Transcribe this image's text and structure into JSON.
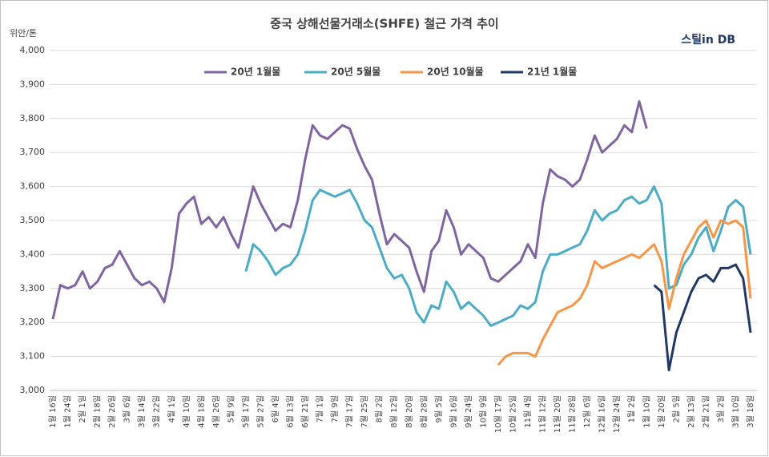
{
  "chart_data": {
    "type": "line",
    "title": "중국 상해선물거래소(SHFE) 철근 가격 추이",
    "y_label": "위안/톤",
    "source": "스틸in DB",
    "legend_position": "top",
    "grid": true,
    "ylim": [
      3000,
      4000
    ],
    "yticks": [
      {
        "value": 3000,
        "label": "3,000"
      },
      {
        "value": 3100,
        "label": "3,100"
      },
      {
        "value": 3200,
        "label": "3,200"
      },
      {
        "value": 3300,
        "label": "3,300"
      },
      {
        "value": 3400,
        "label": "3,400"
      },
      {
        "value": 3500,
        "label": "3,500"
      },
      {
        "value": 3600,
        "label": "3,600"
      },
      {
        "value": 3700,
        "label": "3,700"
      },
      {
        "value": 3800,
        "label": "3,800"
      },
      {
        "value": 3900,
        "label": "3,900"
      },
      {
        "value": 4000,
        "label": "4,000"
      }
    ],
    "categories": [
      "1월 16일",
      null,
      "1월 24일",
      null,
      "2월 1일",
      null,
      "2월 18일",
      null,
      "2월 26일",
      null,
      "3월 6일",
      null,
      "3월 14일",
      null,
      "3월 22일",
      null,
      "4월 1일",
      null,
      "4월 10일",
      null,
      "4월 18일",
      null,
      "4월 26일",
      null,
      "5월 9일",
      null,
      "5월 17일",
      null,
      "5월 27일",
      null,
      "6월 4일",
      null,
      "6월 13일",
      null,
      "6월 21일",
      null,
      "7월 1일",
      null,
      "7월 9일",
      null,
      "7월 17일",
      null,
      "7월 25일",
      null,
      "8월 2일",
      null,
      "8월 12일",
      null,
      "8월 20일",
      null,
      "8월 28일",
      null,
      "9월 5일",
      null,
      "9월 16일",
      null,
      "9월 24일",
      null,
      "10월 9일",
      null,
      "10월 17일",
      null,
      "10월 25일",
      null,
      "11월 4일",
      null,
      "11월 12일",
      null,
      "11월 20일",
      null,
      "11월 28일",
      null,
      "12월 6일",
      null,
      "12월 16일",
      null,
      "12월 24일",
      null,
      "1월 2일",
      null,
      "1월 10일",
      null,
      "1월 20일",
      null,
      "2월 5일",
      null,
      "2월 13일",
      null,
      "2월 21일",
      null,
      "3월 2일",
      null,
      "3월 10일",
      null,
      "3월 18일"
    ],
    "series": [
      {
        "name": "20년 1월물",
        "color": "#8064a2",
        "values": [
          3210,
          3310,
          3300,
          3310,
          3350,
          3300,
          3320,
          3360,
          3370,
          3410,
          3370,
          3330,
          3310,
          3320,
          3300,
          3260,
          3360,
          3520,
          3550,
          3570,
          3490,
          3510,
          3480,
          3510,
          3460,
          3420,
          3510,
          3600,
          3550,
          3510,
          3470,
          3490,
          3480,
          3560,
          3680,
          3780,
          3750,
          3740,
          3760,
          3780,
          3770,
          3710,
          3660,
          3620,
          3520,
          3430,
          3460,
          3440,
          3420,
          3350,
          3290,
          3410,
          3440,
          3530,
          3480,
          3400,
          3430,
          3410,
          3390,
          3330,
          3320,
          3340,
          3360,
          3380,
          3430,
          3390,
          3550,
          3650,
          3630,
          3620,
          3600,
          3620,
          3680,
          3750,
          3700,
          3720,
          3740,
          3780,
          3760,
          3850,
          3770,
          null,
          null,
          null,
          null,
          null,
          null,
          null,
          null,
          null,
          null,
          null,
          null,
          null,
          null
        ]
      },
      {
        "name": "20년 5월물",
        "color": "#4bacc6",
        "values": [
          null,
          null,
          null,
          null,
          null,
          null,
          null,
          null,
          null,
          null,
          null,
          null,
          null,
          null,
          null,
          null,
          null,
          null,
          null,
          null,
          null,
          null,
          null,
          null,
          null,
          null,
          3350,
          3430,
          3410,
          3380,
          3340,
          3360,
          3370,
          3400,
          3470,
          3560,
          3590,
          3580,
          3570,
          3580,
          3590,
          3550,
          3500,
          3480,
          3420,
          3360,
          3330,
          3340,
          3300,
          3230,
          3200,
          3250,
          3240,
          3320,
          3290,
          3240,
          3260,
          3240,
          3220,
          3190,
          3200,
          3210,
          3220,
          3250,
          3240,
          3260,
          3350,
          3400,
          3400,
          3410,
          3420,
          3430,
          3470,
          3530,
          3500,
          3520,
          3530,
          3560,
          3570,
          3550,
          3560,
          3600,
          3550,
          3300,
          3310,
          3370,
          3400,
          3450,
          3480,
          3410,
          3470,
          3540,
          3560,
          3540,
          3400
        ]
      },
      {
        "name": "20년 10월물",
        "color": "#f79646",
        "values": [
          null,
          null,
          null,
          null,
          null,
          null,
          null,
          null,
          null,
          null,
          null,
          null,
          null,
          null,
          null,
          null,
          null,
          null,
          null,
          null,
          null,
          null,
          null,
          null,
          null,
          null,
          null,
          null,
          null,
          null,
          null,
          null,
          null,
          null,
          null,
          null,
          null,
          null,
          null,
          null,
          null,
          null,
          null,
          null,
          null,
          null,
          null,
          null,
          null,
          null,
          null,
          null,
          null,
          null,
          null,
          null,
          null,
          null,
          null,
          null,
          3075,
          3100,
          3110,
          3110,
          3110,
          3100,
          3150,
          3190,
          3230,
          3240,
          3250,
          3270,
          3310,
          3380,
          3360,
          3370,
          3380,
          3390,
          3400,
          3390,
          3410,
          3430,
          3380,
          3240,
          3330,
          3400,
          3440,
          3480,
          3500,
          3450,
          3500,
          3490,
          3500,
          3480,
          3270
        ]
      },
      {
        "name": "21년 1월물",
        "color": "#1f3864",
        "values": [
          null,
          null,
          null,
          null,
          null,
          null,
          null,
          null,
          null,
          null,
          null,
          null,
          null,
          null,
          null,
          null,
          null,
          null,
          null,
          null,
          null,
          null,
          null,
          null,
          null,
          null,
          null,
          null,
          null,
          null,
          null,
          null,
          null,
          null,
          null,
          null,
          null,
          null,
          null,
          null,
          null,
          null,
          null,
          null,
          null,
          null,
          null,
          null,
          null,
          null,
          null,
          null,
          null,
          null,
          null,
          null,
          null,
          null,
          null,
          null,
          null,
          null,
          null,
          null,
          null,
          null,
          null,
          null,
          null,
          null,
          null,
          null,
          null,
          null,
          null,
          null,
          null,
          null,
          null,
          null,
          null,
          3310,
          3290,
          3060,
          3170,
          3230,
          3290,
          3330,
          3340,
          3320,
          3360,
          3360,
          3370,
          3330,
          3170
        ]
      }
    ]
  }
}
